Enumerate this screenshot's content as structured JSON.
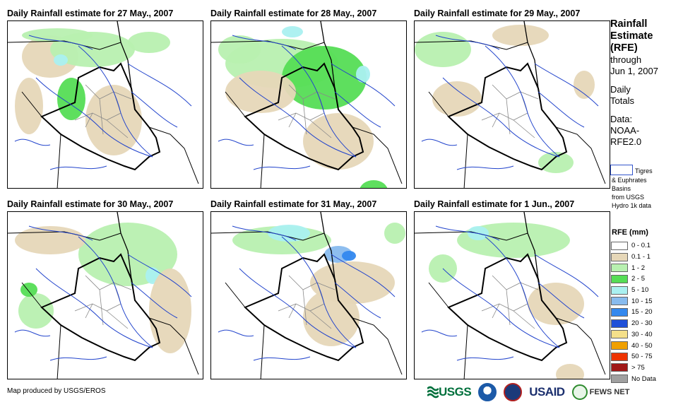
{
  "panels": [
    {
      "title": "Daily Rainfall estimate for 27 May., 2007"
    },
    {
      "title": "Daily Rainfall estimate for 28 May., 2007"
    },
    {
      "title": "Daily Rainfall estimate for 29 May., 2007"
    },
    {
      "title": "Daily Rainfall estimate for 30 May., 2007"
    },
    {
      "title": "Daily Rainfall estimate for 31 May., 2007"
    },
    {
      "title": "Daily Rainfall estimate for 1 Jun., 2007"
    }
  ],
  "sidebar": {
    "title_lines": [
      "Rainfall",
      "Estimate",
      "(RFE)"
    ],
    "through": "through",
    "date": "Jun 1, 2007",
    "totals_lines": [
      "Daily",
      "Totals"
    ],
    "data_lines": [
      "Data:",
      "NOAA-",
      "RFE2.0"
    ],
    "basin_lines": [
      "Tigres",
      "& Euphrates",
      "Basins",
      "from USGS",
      "Hydro 1k data"
    ]
  },
  "legend": {
    "title": "RFE (mm)",
    "items": [
      {
        "label": "0 - 0.1",
        "color": "#ffffff"
      },
      {
        "label": "0.1 - 1",
        "color": "#e6d7b8"
      },
      {
        "label": "1 - 2",
        "color": "#b8f0b0"
      },
      {
        "label": "2 - 5",
        "color": "#55dd55"
      },
      {
        "label": "5 - 10",
        "color": "#aaf0f0"
      },
      {
        "label": "10 - 15",
        "color": "#88bbee"
      },
      {
        "label": "15 - 20",
        "color": "#3388ee"
      },
      {
        "label": "20 - 30",
        "color": "#1f4fd8"
      },
      {
        "label": "30 - 40",
        "color": "#f5e08a"
      },
      {
        "label": "40 - 50",
        "color": "#f0a000"
      },
      {
        "label": "50 - 75",
        "color": "#ee3300"
      },
      {
        "label": "> 75",
        "color": "#a01818"
      },
      {
        "label": "No Data",
        "color": "#a0a0a0"
      }
    ]
  },
  "footer": {
    "credit": "Map produced by USGS/EROS"
  },
  "logos": {
    "usgs": "USGS",
    "usaid": "USAID",
    "fews": "FEWS NET"
  }
}
